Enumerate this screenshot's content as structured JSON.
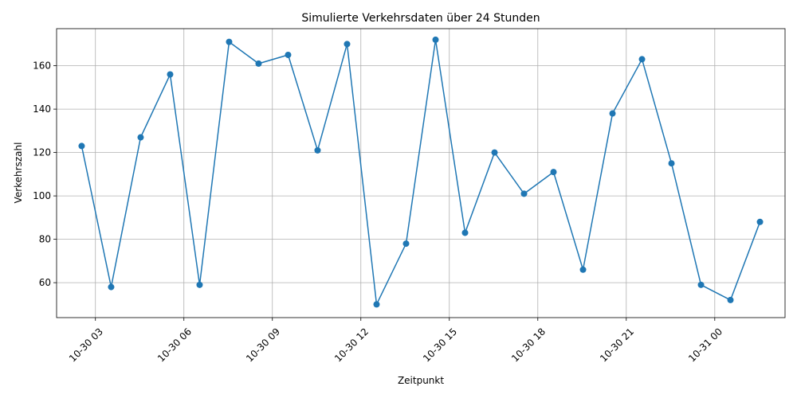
{
  "chart_data": {
    "type": "line",
    "title": "Simulierte Verkehrsdaten über 24 Stunden",
    "xlabel": "Zeitpunkt",
    "ylabel": "Verkehrszahl",
    "x_axis_type": "datetime",
    "x": [
      "2023-10-30 02:32",
      "2023-10-30 03:32",
      "2023-10-30 04:32",
      "2023-10-30 05:32",
      "2023-10-30 06:32",
      "2023-10-30 07:32",
      "2023-10-30 08:32",
      "2023-10-30 09:32",
      "2023-10-30 10:32",
      "2023-10-30 11:32",
      "2023-10-30 12:32",
      "2023-10-30 13:32",
      "2023-10-30 14:32",
      "2023-10-30 15:32",
      "2023-10-30 16:32",
      "2023-10-30 17:32",
      "2023-10-30 18:32",
      "2023-10-30 19:32",
      "2023-10-30 20:32",
      "2023-10-30 21:32",
      "2023-10-30 22:32",
      "2023-10-30 23:32",
      "2023-10-31 00:32",
      "2023-10-31 01:32"
    ],
    "series": [
      {
        "values": [
          123,
          58,
          127,
          156,
          59,
          171,
          161,
          165,
          121,
          170,
          50,
          78,
          172,
          83,
          120,
          101,
          111,
          66,
          138,
          163,
          115,
          59,
          52,
          88
        ],
        "color": "#1f77b4",
        "marker": "circle"
      }
    ],
    "xlim": [
      "2023-10-30 01:41",
      "2023-10-31 02:23"
    ],
    "ylim": [
      43898,
      177098
    ],
    "ylim_scale": 1000,
    "xticks": [
      {
        "at": "2023-10-30 03:00",
        "label": "10-30 03"
      },
      {
        "at": "2023-10-30 06:00",
        "label": "10-30 06"
      },
      {
        "at": "2023-10-30 09:00",
        "label": "10-30 09"
      },
      {
        "at": "2023-10-30 12:00",
        "label": "10-30 12"
      },
      {
        "at": "2023-10-30 15:00",
        "label": "10-30 15"
      },
      {
        "at": "2023-10-30 18:00",
        "label": "10-30 18"
      },
      {
        "at": "2023-10-30 21:00",
        "label": "10-30 21"
      },
      {
        "at": "2023-10-31 00:00",
        "label": "10-31 00"
      }
    ],
    "yticks": [
      60,
      80,
      100,
      120,
      140,
      160
    ],
    "grid": true,
    "grid_color": "#b0b0b0",
    "legend": "none"
  }
}
